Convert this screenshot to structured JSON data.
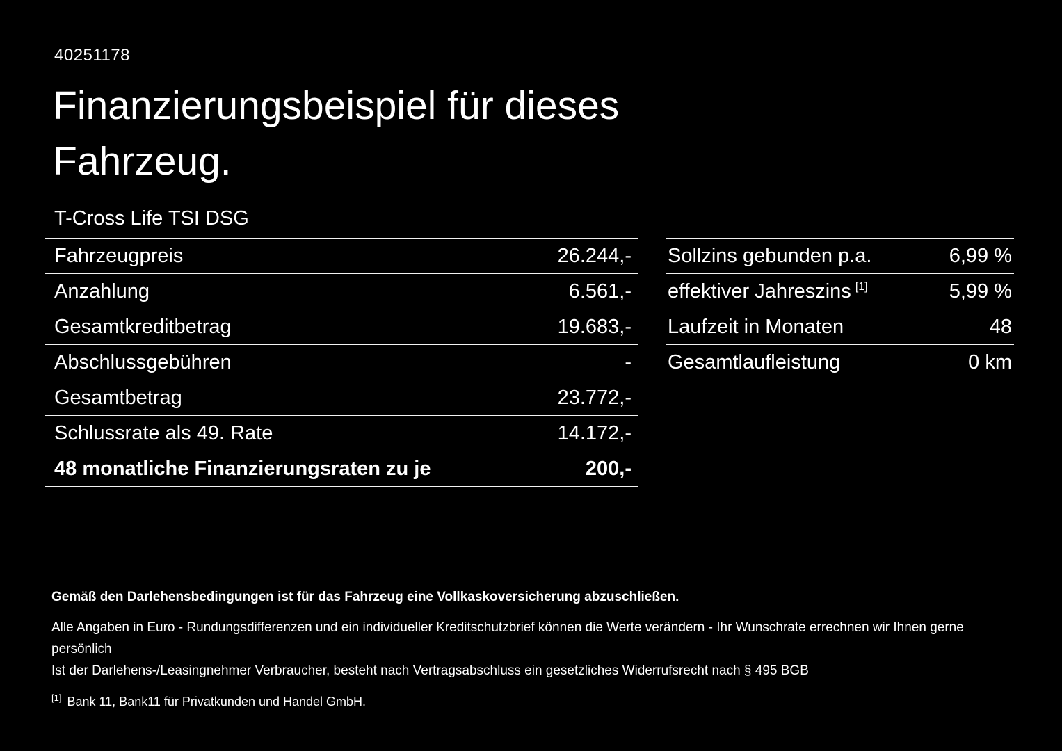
{
  "doc_id": "40251178",
  "title": "Finanzierungsbeispiel für dieses Fahrzeug.",
  "vehicle_name": "T-Cross Life TSI DSG",
  "left_table": {
    "rows": [
      {
        "label": "Fahrzeugpreis",
        "value": "26.244,-"
      },
      {
        "label": "Anzahlung",
        "value": "6.561,-"
      },
      {
        "label": "Gesamtkreditbetrag",
        "value": "19.683,-"
      },
      {
        "label": "Abschlussgebühren",
        "value": "-"
      },
      {
        "label": "Gesamtbetrag",
        "value": "23.772,-"
      },
      {
        "label": "Schlussrate als 49. Rate",
        "value": "14.172,-"
      },
      {
        "label": "48 monatliche Finanzierungsraten zu je",
        "value": "200,-"
      }
    ]
  },
  "right_table": {
    "rows": [
      {
        "label": "Sollzins gebunden p.a.",
        "sup": "",
        "value": "6,99 %"
      },
      {
        "label": "effektiver Jahreszins",
        "sup": "[1]",
        "value": "5,99 %"
      },
      {
        "label": "Laufzeit in Monaten",
        "sup": "",
        "value": "48"
      },
      {
        "label": "Gesamtlaufleistung",
        "sup": "",
        "value": "0 km"
      }
    ]
  },
  "footer": {
    "bold_note": "Gemäß den Darlehensbedingungen ist für das Fahrzeug eine Vollkaskoversicherung abzuschließen.",
    "note1": "Alle Angaben in Euro - Rundungsdifferenzen und ein individueller Kreditschutzbrief können die Werte verändern - Ihr Wunschrate errechnen wir Ihnen gerne persönlich",
    "note2": "Ist der Darlehens-/Leasingnehmer Verbraucher, besteht nach Vertragsabschluss ein gesetzliches Widerrufsrecht nach § 495 BGB",
    "footnote_marker": "[1]",
    "footnote_text": "Bank 11, Bank11 für Privatkunden und Handel GmbH."
  },
  "colors": {
    "background": "#000000",
    "text": "#ffffff",
    "divider": "#f2f2f2"
  }
}
